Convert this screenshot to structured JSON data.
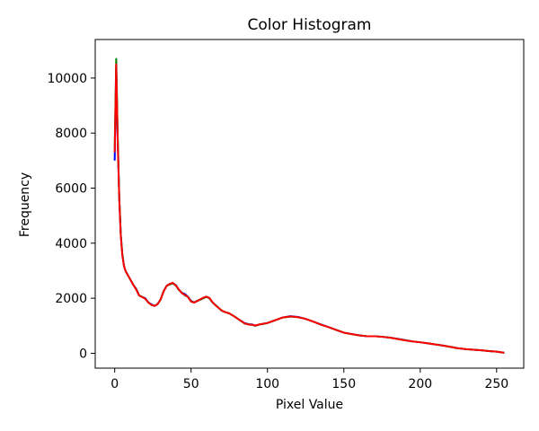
{
  "chart_data": {
    "type": "line",
    "title": "Color Histogram",
    "xlabel": "Pixel Value",
    "ylabel": "Frequency",
    "xlim": [
      -12.75,
      267.75
    ],
    "ylim": [
      -540,
      11400
    ],
    "xticks": [
      0,
      50,
      100,
      150,
      200,
      250
    ],
    "yticks": [
      0,
      2000,
      4000,
      6000,
      8000,
      10000
    ],
    "grid": false,
    "legend": "none",
    "series": [
      {
        "name": "blue",
        "color": "#0000ff",
        "points": [
          [
            0,
            7000
          ],
          [
            1,
            10400
          ],
          [
            2,
            7700
          ],
          [
            3,
            5600
          ],
          [
            4,
            4300
          ],
          [
            5,
            3600
          ],
          [
            6,
            3200
          ],
          [
            7,
            3000
          ],
          [
            8,
            2900
          ],
          [
            10,
            2700
          ],
          [
            12,
            2500
          ],
          [
            14,
            2350
          ],
          [
            16,
            2100
          ],
          [
            18,
            2050
          ],
          [
            20,
            2000
          ],
          [
            22,
            1850
          ],
          [
            24,
            1780
          ],
          [
            26,
            1720
          ],
          [
            28,
            1780
          ],
          [
            30,
            1950
          ],
          [
            32,
            2250
          ],
          [
            34,
            2450
          ],
          [
            36,
            2520
          ],
          [
            38,
            2550
          ],
          [
            40,
            2480
          ],
          [
            42,
            2300
          ],
          [
            44,
            2200
          ],
          [
            46,
            2150
          ],
          [
            48,
            2050
          ],
          [
            50,
            1900
          ],
          [
            52,
            1850
          ],
          [
            54,
            1900
          ],
          [
            56,
            1950
          ],
          [
            58,
            2000
          ],
          [
            60,
            2050
          ],
          [
            62,
            2000
          ],
          [
            64,
            1850
          ],
          [
            66,
            1750
          ],
          [
            68,
            1650
          ],
          [
            70,
            1550
          ],
          [
            72,
            1500
          ],
          [
            75,
            1450
          ],
          [
            78,
            1350
          ],
          [
            82,
            1200
          ],
          [
            85,
            1100
          ],
          [
            88,
            1050
          ],
          [
            90,
            1050
          ],
          [
            92,
            1000
          ],
          [
            95,
            1050
          ],
          [
            100,
            1100
          ],
          [
            105,
            1200
          ],
          [
            110,
            1300
          ],
          [
            115,
            1350
          ],
          [
            120,
            1320
          ],
          [
            125,
            1250
          ],
          [
            130,
            1150
          ],
          [
            135,
            1050
          ],
          [
            140,
            950
          ],
          [
            145,
            850
          ],
          [
            150,
            750
          ],
          [
            155,
            700
          ],
          [
            160,
            650
          ],
          [
            165,
            620
          ],
          [
            170,
            620
          ],
          [
            175,
            600
          ],
          [
            180,
            570
          ],
          [
            185,
            530
          ],
          [
            190,
            480
          ],
          [
            195,
            430
          ],
          [
            200,
            400
          ],
          [
            205,
            360
          ],
          [
            210,
            320
          ],
          [
            215,
            280
          ],
          [
            220,
            230
          ],
          [
            225,
            180
          ],
          [
            230,
            150
          ],
          [
            235,
            130
          ],
          [
            240,
            110
          ],
          [
            245,
            80
          ],
          [
            250,
            60
          ],
          [
            255,
            20
          ]
        ]
      },
      {
        "name": "green",
        "color": "#008000",
        "points": [
          [
            0,
            7500
          ],
          [
            1,
            10700
          ],
          [
            2,
            7800
          ],
          [
            3,
            5650
          ],
          [
            4,
            4300
          ],
          [
            5,
            3600
          ],
          [
            6,
            3200
          ],
          [
            7,
            3000
          ],
          [
            8,
            2900
          ],
          [
            10,
            2700
          ],
          [
            12,
            2500
          ],
          [
            14,
            2330
          ],
          [
            16,
            2100
          ],
          [
            18,
            2050
          ],
          [
            20,
            1980
          ],
          [
            22,
            1850
          ],
          [
            24,
            1760
          ],
          [
            26,
            1720
          ],
          [
            28,
            1780
          ],
          [
            30,
            1950
          ],
          [
            32,
            2250
          ],
          [
            34,
            2450
          ],
          [
            36,
            2500
          ],
          [
            38,
            2540
          ],
          [
            40,
            2460
          ],
          [
            42,
            2300
          ],
          [
            44,
            2200
          ],
          [
            46,
            2100
          ],
          [
            48,
            2050
          ],
          [
            50,
            1880
          ],
          [
            52,
            1850
          ],
          [
            54,
            1900
          ],
          [
            56,
            1950
          ],
          [
            58,
            2000
          ],
          [
            60,
            2050
          ],
          [
            62,
            2000
          ],
          [
            64,
            1850
          ],
          [
            66,
            1750
          ],
          [
            68,
            1650
          ],
          [
            70,
            1550
          ],
          [
            72,
            1500
          ],
          [
            75,
            1450
          ],
          [
            78,
            1350
          ],
          [
            82,
            1200
          ],
          [
            85,
            1080
          ],
          [
            88,
            1050
          ],
          [
            90,
            1030
          ],
          [
            92,
            1000
          ],
          [
            95,
            1050
          ],
          [
            100,
            1100
          ],
          [
            105,
            1200
          ],
          [
            110,
            1300
          ],
          [
            115,
            1330
          ],
          [
            120,
            1310
          ],
          [
            125,
            1250
          ],
          [
            130,
            1150
          ],
          [
            135,
            1040
          ],
          [
            140,
            950
          ],
          [
            145,
            850
          ],
          [
            150,
            750
          ],
          [
            155,
            700
          ],
          [
            160,
            650
          ],
          [
            165,
            620
          ],
          [
            170,
            620
          ],
          [
            175,
            600
          ],
          [
            180,
            570
          ],
          [
            185,
            520
          ],
          [
            190,
            470
          ],
          [
            195,
            430
          ],
          [
            200,
            400
          ],
          [
            205,
            360
          ],
          [
            210,
            320
          ],
          [
            215,
            280
          ],
          [
            220,
            230
          ],
          [
            225,
            180
          ],
          [
            230,
            150
          ],
          [
            235,
            130
          ],
          [
            240,
            110
          ],
          [
            245,
            80
          ],
          [
            250,
            60
          ],
          [
            255,
            20
          ]
        ]
      },
      {
        "name": "red",
        "color": "#ff0000",
        "points": [
          [
            0,
            7300
          ],
          [
            1,
            10500
          ],
          [
            2,
            7600
          ],
          [
            3,
            5600
          ],
          [
            4,
            4250
          ],
          [
            5,
            3550
          ],
          [
            6,
            3200
          ],
          [
            7,
            3000
          ],
          [
            8,
            2900
          ],
          [
            10,
            2700
          ],
          [
            12,
            2500
          ],
          [
            14,
            2320
          ],
          [
            16,
            2100
          ],
          [
            18,
            2040
          ],
          [
            20,
            1980
          ],
          [
            22,
            1840
          ],
          [
            24,
            1760
          ],
          [
            26,
            1720
          ],
          [
            28,
            1780
          ],
          [
            30,
            1950
          ],
          [
            32,
            2250
          ],
          [
            34,
            2450
          ],
          [
            36,
            2520
          ],
          [
            38,
            2560
          ],
          [
            40,
            2470
          ],
          [
            42,
            2320
          ],
          [
            44,
            2180
          ],
          [
            46,
            2120
          ],
          [
            48,
            2040
          ],
          [
            50,
            1880
          ],
          [
            52,
            1840
          ],
          [
            54,
            1900
          ],
          [
            56,
            1960
          ],
          [
            58,
            2020
          ],
          [
            60,
            2060
          ],
          [
            62,
            2010
          ],
          [
            64,
            1860
          ],
          [
            66,
            1740
          ],
          [
            68,
            1650
          ],
          [
            70,
            1560
          ],
          [
            72,
            1500
          ],
          [
            75,
            1450
          ],
          [
            78,
            1350
          ],
          [
            82,
            1200
          ],
          [
            85,
            1090
          ],
          [
            88,
            1040
          ],
          [
            90,
            1040
          ],
          [
            92,
            1010
          ],
          [
            95,
            1050
          ],
          [
            100,
            1100
          ],
          [
            105,
            1200
          ],
          [
            110,
            1300
          ],
          [
            115,
            1340
          ],
          [
            120,
            1310
          ],
          [
            125,
            1250
          ],
          [
            130,
            1150
          ],
          [
            135,
            1040
          ],
          [
            140,
            950
          ],
          [
            145,
            850
          ],
          [
            150,
            750
          ],
          [
            155,
            700
          ],
          [
            160,
            650
          ],
          [
            165,
            620
          ],
          [
            170,
            620
          ],
          [
            175,
            600
          ],
          [
            180,
            570
          ],
          [
            185,
            520
          ],
          [
            190,
            470
          ],
          [
            195,
            430
          ],
          [
            200,
            400
          ],
          [
            205,
            360
          ],
          [
            210,
            320
          ],
          [
            215,
            280
          ],
          [
            220,
            230
          ],
          [
            225,
            180
          ],
          [
            230,
            150
          ],
          [
            235,
            130
          ],
          [
            240,
            110
          ],
          [
            245,
            80
          ],
          [
            250,
            60
          ],
          [
            255,
            20
          ]
        ]
      }
    ]
  }
}
